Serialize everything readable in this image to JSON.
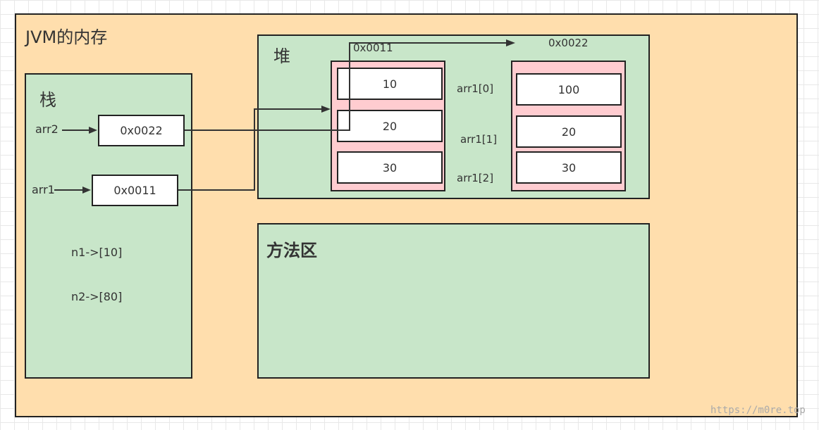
{
  "title": "JVM的内存",
  "stack": {
    "title": "栈",
    "vars": [
      {
        "name": "arr2",
        "value": "0x0022"
      },
      {
        "name": "arr1",
        "value": "0x0011"
      }
    ],
    "notes": [
      "n1->[10]",
      "n2->[80]"
    ]
  },
  "heap": {
    "title": "堆",
    "arrays": [
      {
        "address": "0x0011",
        "values": [
          "10",
          "20",
          "30"
        ]
      },
      {
        "address": "0x0022",
        "values": [
          "100",
          "20",
          "30"
        ]
      }
    ],
    "index_labels": [
      "arr1[0]",
      "arr1[1]",
      "arr1[2]"
    ]
  },
  "method_area": {
    "title": "方法区"
  },
  "watermark": "https://m0re.top"
}
